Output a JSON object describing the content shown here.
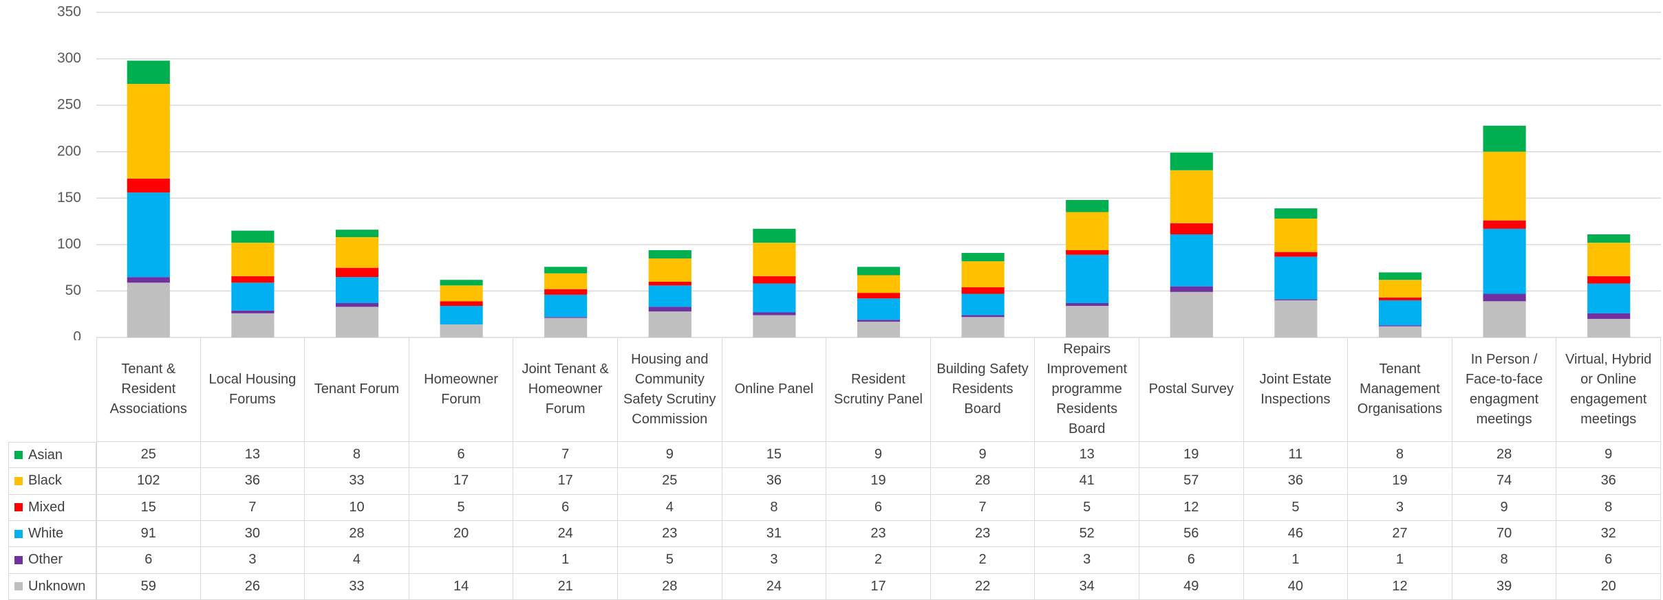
{
  "chart_data": {
    "type": "bar",
    "stacked": true,
    "categories": [
      "Tenant & Resident Associations",
      "Local Housing Forums",
      "Tenant Forum",
      "Homeowner Forum",
      "Joint Tenant & Homeowner Forum",
      "Housing and Community Safety Scrutiny Commission",
      "Online Panel",
      "Resident Scrutiny Panel",
      "Building Safety Residents Board",
      "Repairs Improvement programme Residents Board",
      "Postal Survey",
      "Joint Estate Inspections",
      "Tenant Management Organisations",
      "In Person / Face-to-face engagment meetings",
      "Virtual, Hybrid or Online engagement meetings"
    ],
    "series": [
      {
        "name": "Asian",
        "color": "#00b050",
        "values": [
          25,
          13,
          8,
          6,
          7,
          9,
          15,
          9,
          9,
          13,
          19,
          11,
          8,
          28,
          9
        ]
      },
      {
        "name": "Black",
        "color": "#ffc000",
        "values": [
          102,
          36,
          33,
          17,
          17,
          25,
          36,
          19,
          28,
          41,
          57,
          36,
          19,
          74,
          36
        ]
      },
      {
        "name": "Mixed",
        "color": "#ff0000",
        "values": [
          15,
          7,
          10,
          5,
          6,
          4,
          8,
          6,
          7,
          5,
          12,
          5,
          3,
          9,
          8
        ]
      },
      {
        "name": "White",
        "color": "#00b0f0",
        "values": [
          91,
          30,
          28,
          20,
          24,
          23,
          31,
          23,
          23,
          52,
          56,
          46,
          27,
          70,
          32
        ]
      },
      {
        "name": "Other",
        "color": "#7030a0",
        "values": [
          6,
          3,
          4,
          null,
          1,
          5,
          3,
          2,
          2,
          3,
          6,
          1,
          1,
          8,
          6
        ]
      },
      {
        "name": "Unknown",
        "color": "#bfbfbf",
        "values": [
          59,
          26,
          33,
          14,
          21,
          28,
          24,
          17,
          22,
          34,
          49,
          40,
          12,
          39,
          20
        ]
      }
    ],
    "ylim": [
      0,
      350
    ],
    "yticks": [
      0,
      50,
      100,
      150,
      200,
      250,
      300,
      350
    ],
    "grid": true,
    "data_table": true
  }
}
